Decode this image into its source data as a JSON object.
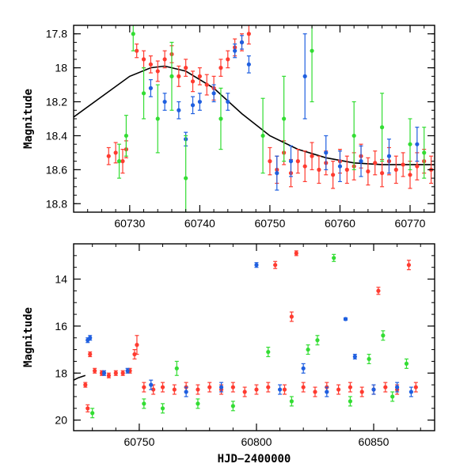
{
  "chart_data": [
    {
      "type": "scatter",
      "ylabel": "Magnitude",
      "xlabel": "",
      "xlim": [
        60722,
        60773.5
      ],
      "ylim": [
        18.85,
        17.75
      ],
      "y_inverted": true,
      "x_ticks": [
        60730,
        60740,
        60750,
        60760,
        60770
      ],
      "y_ticks": [
        17.8,
        18,
        18.2,
        18.4,
        18.6,
        18.8
      ],
      "x_tick_labels": [
        "60730",
        "60740",
        "60750",
        "60760",
        "60770"
      ],
      "y_tick_labels": [
        "17.8",
        "18",
        "18.2",
        "18.4",
        "18.6",
        "18.8"
      ],
      "model_curve": {
        "color": "#000000",
        "x": [
          60722,
          60726,
          60730,
          60733,
          60735,
          60738,
          60742,
          60746,
          60750,
          60754,
          60758,
          60762,
          60766,
          60770,
          60773.5
        ],
        "y": [
          18.29,
          18.17,
          18.05,
          18.0,
          17.99,
          18.02,
          18.12,
          18.27,
          18.4,
          18.48,
          18.53,
          18.56,
          18.57,
          18.57,
          18.57
        ]
      },
      "series": [
        {
          "color": "#ff3b30",
          "points": [
            {
              "x": 60727,
              "y": 18.52,
              "e": 0.05
            },
            {
              "x": 60728,
              "y": 18.5,
              "e": 0.06
            },
            {
              "x": 60729,
              "y": 18.55,
              "e": 0.07
            },
            {
              "x": 60729.5,
              "y": 18.48,
              "e": 0.05
            },
            {
              "x": 60731,
              "y": 17.9,
              "e": 0.04
            },
            {
              "x": 60732,
              "y": 17.95,
              "e": 0.05
            },
            {
              "x": 60733,
              "y": 17.98,
              "e": 0.05
            },
            {
              "x": 60734,
              "y": 18.02,
              "e": 0.06
            },
            {
              "x": 60735,
              "y": 17.95,
              "e": 0.05
            },
            {
              "x": 60736,
              "y": 17.92,
              "e": 0.05
            },
            {
              "x": 60737,
              "y": 18.05,
              "e": 0.06
            },
            {
              "x": 60738,
              "y": 18.0,
              "e": 0.05
            },
            {
              "x": 60739,
              "y": 18.08,
              "e": 0.06
            },
            {
              "x": 60740,
              "y": 18.05,
              "e": 0.05
            },
            {
              "x": 60741,
              "y": 18.1,
              "e": 0.06
            },
            {
              "x": 60742,
              "y": 18.12,
              "e": 0.07
            },
            {
              "x": 60743,
              "y": 18.0,
              "e": 0.05
            },
            {
              "x": 60744,
              "y": 17.95,
              "e": 0.05
            },
            {
              "x": 60745,
              "y": 17.88,
              "e": 0.05
            },
            {
              "x": 60746,
              "y": 17.85,
              "e": 0.05
            },
            {
              "x": 60747,
              "y": 17.8,
              "e": 0.06
            },
            {
              "x": 60750,
              "y": 18.55,
              "e": 0.08
            },
            {
              "x": 60751,
              "y": 18.6,
              "e": 0.08
            },
            {
              "x": 60752,
              "y": 18.5,
              "e": 0.07
            },
            {
              "x": 60753,
              "y": 18.62,
              "e": 0.08
            },
            {
              "x": 60754,
              "y": 18.55,
              "e": 0.07
            },
            {
              "x": 60755,
              "y": 18.58,
              "e": 0.09
            },
            {
              "x": 60756,
              "y": 18.52,
              "e": 0.08
            },
            {
              "x": 60757,
              "y": 18.6,
              "e": 0.08
            },
            {
              "x": 60758,
              "y": 18.56,
              "e": 0.07
            },
            {
              "x": 60759,
              "y": 18.63,
              "e": 0.08
            },
            {
              "x": 60760,
              "y": 18.55,
              "e": 0.07
            },
            {
              "x": 60761,
              "y": 18.6,
              "e": 0.08
            },
            {
              "x": 60762,
              "y": 18.58,
              "e": 0.08
            },
            {
              "x": 60763,
              "y": 18.52,
              "e": 0.07
            },
            {
              "x": 60764,
              "y": 18.61,
              "e": 0.08
            },
            {
              "x": 60765,
              "y": 18.56,
              "e": 0.07
            },
            {
              "x": 60766,
              "y": 18.62,
              "e": 0.08
            },
            {
              "x": 60767,
              "y": 18.55,
              "e": 0.08
            },
            {
              "x": 60768,
              "y": 18.6,
              "e": 0.08
            },
            {
              "x": 60769,
              "y": 18.57,
              "e": 0.07
            },
            {
              "x": 60770,
              "y": 18.63,
              "e": 0.08
            },
            {
              "x": 60771,
              "y": 18.58,
              "e": 0.08
            },
            {
              "x": 60772,
              "y": 18.55,
              "e": 0.07
            },
            {
              "x": 60773,
              "y": 18.6,
              "e": 0.08
            }
          ]
        },
        {
          "color": "#1f5fe0",
          "points": [
            {
              "x": 60733,
              "y": 18.12,
              "e": 0.05
            },
            {
              "x": 60735,
              "y": 18.2,
              "e": 0.05
            },
            {
              "x": 60737,
              "y": 18.25,
              "e": 0.05
            },
            {
              "x": 60738,
              "y": 18.42,
              "e": 0.04
            },
            {
              "x": 60739,
              "y": 18.22,
              "e": 0.05
            },
            {
              "x": 60740,
              "y": 18.2,
              "e": 0.05
            },
            {
              "x": 60742,
              "y": 18.15,
              "e": 0.05
            },
            {
              "x": 60744,
              "y": 18.2,
              "e": 0.05
            },
            {
              "x": 60745,
              "y": 17.9,
              "e": 0.04
            },
            {
              "x": 60746,
              "y": 17.85,
              "e": 0.04
            },
            {
              "x": 60747,
              "y": 17.98,
              "e": 0.05
            },
            {
              "x": 60751,
              "y": 18.62,
              "e": 0.1
            },
            {
              "x": 60753,
              "y": 18.55,
              "e": 0.09
            },
            {
              "x": 60755,
              "y": 18.05,
              "e": 0.25
            },
            {
              "x": 60758,
              "y": 18.5,
              "e": 0.1
            },
            {
              "x": 60760,
              "y": 18.58,
              "e": 0.09
            },
            {
              "x": 60763,
              "y": 18.55,
              "e": 0.09
            },
            {
              "x": 60767,
              "y": 18.52,
              "e": 0.1
            },
            {
              "x": 60771,
              "y": 18.45,
              "e": 0.1
            }
          ]
        },
        {
          "color": "#33dd33",
          "points": [
            {
              "x": 60728.5,
              "y": 18.55,
              "e": 0.1
            },
            {
              "x": 60729.5,
              "y": 18.4,
              "e": 0.12
            },
            {
              "x": 60730.5,
              "y": 17.8,
              "e": 0.1
            },
            {
              "x": 60732,
              "y": 18.15,
              "e": 0.15
            },
            {
              "x": 60734,
              "y": 18.3,
              "e": 0.2
            },
            {
              "x": 60736,
              "y": 18.05,
              "e": 0.2
            },
            {
              "x": 60738,
              "y": 18.65,
              "e": 0.25
            },
            {
              "x": 60743,
              "y": 18.3,
              "e": 0.18
            },
            {
              "x": 60749,
              "y": 18.4,
              "e": 0.22
            },
            {
              "x": 60752,
              "y": 18.3,
              "e": 0.25
            },
            {
              "x": 60756,
              "y": 17.9,
              "e": 0.3
            },
            {
              "x": 60762,
              "y": 18.4,
              "e": 0.2
            },
            {
              "x": 60766,
              "y": 18.35,
              "e": 0.2
            },
            {
              "x": 60770,
              "y": 18.45,
              "e": 0.15
            },
            {
              "x": 60772,
              "y": 18.5,
              "e": 0.15
            }
          ]
        }
      ]
    },
    {
      "type": "scatter",
      "ylabel": "Magnitude",
      "xlabel": "HJD−2400000",
      "xlim": [
        60722,
        60876
      ],
      "ylim": [
        20.45,
        12.5
      ],
      "y_inverted": true,
      "x_ticks": [
        60750,
        60800,
        60850
      ],
      "y_ticks": [
        14,
        16,
        18,
        20
      ],
      "x_tick_labels": [
        "60750",
        "60800",
        "60850"
      ],
      "y_tick_labels": [
        "14",
        "16",
        "18",
        "20"
      ],
      "model_curve": {
        "color": "#000000",
        "x": [
          60722,
          60724,
          60727
        ],
        "y": [
          18.3,
          18.2,
          18.1
        ]
      },
      "series": [
        {
          "color": "#ff3b30",
          "points": [
            {
              "x": 60727,
              "y": 18.5,
              "e": 0.1
            },
            {
              "x": 60728,
              "y": 19.5,
              "e": 0.15
            },
            {
              "x": 60729,
              "y": 17.2,
              "e": 0.1
            },
            {
              "x": 60731,
              "y": 17.9,
              "e": 0.1
            },
            {
              "x": 60734,
              "y": 18.0,
              "e": 0.1
            },
            {
              "x": 60737,
              "y": 18.1,
              "e": 0.1
            },
            {
              "x": 60740,
              "y": 18.0,
              "e": 0.1
            },
            {
              "x": 60743,
              "y": 18.0,
              "e": 0.1
            },
            {
              "x": 60746,
              "y": 17.9,
              "e": 0.1
            },
            {
              "x": 60748,
              "y": 17.2,
              "e": 0.2
            },
            {
              "x": 60749,
              "y": 16.8,
              "e": 0.4
            },
            {
              "x": 60752,
              "y": 18.6,
              "e": 0.2
            },
            {
              "x": 60756,
              "y": 18.7,
              "e": 0.2
            },
            {
              "x": 60760,
              "y": 18.6,
              "e": 0.2
            },
            {
              "x": 60765,
              "y": 18.7,
              "e": 0.2
            },
            {
              "x": 60770,
              "y": 18.6,
              "e": 0.2
            },
            {
              "x": 60775,
              "y": 18.7,
              "e": 0.2
            },
            {
              "x": 60780,
              "y": 18.6,
              "e": 0.2
            },
            {
              "x": 60785,
              "y": 18.7,
              "e": 0.2
            },
            {
              "x": 60790,
              "y": 18.6,
              "e": 0.2
            },
            {
              "x": 60795,
              "y": 18.8,
              "e": 0.2
            },
            {
              "x": 60800,
              "y": 18.7,
              "e": 0.2
            },
            {
              "x": 60805,
              "y": 18.6,
              "e": 0.2
            },
            {
              "x": 60808,
              "y": 13.4,
              "e": 0.15
            },
            {
              "x": 60812,
              "y": 18.7,
              "e": 0.2
            },
            {
              "x": 60815,
              "y": 15.6,
              "e": 0.2
            },
            {
              "x": 60817,
              "y": 12.9,
              "e": 0.1
            },
            {
              "x": 60820,
              "y": 18.6,
              "e": 0.2
            },
            {
              "x": 60825,
              "y": 18.8,
              "e": 0.2
            },
            {
              "x": 60830,
              "y": 18.6,
              "e": 0.2
            },
            {
              "x": 60835,
              "y": 18.7,
              "e": 0.2
            },
            {
              "x": 60840,
              "y": 18.6,
              "e": 0.2
            },
            {
              "x": 60845,
              "y": 18.8,
              "e": 0.2
            },
            {
              "x": 60850,
              "y": 18.7,
              "e": 0.2
            },
            {
              "x": 60852,
              "y": 14.5,
              "e": 0.15
            },
            {
              "x": 60855,
              "y": 18.6,
              "e": 0.2
            },
            {
              "x": 60860,
              "y": 18.7,
              "e": 0.2
            },
            {
              "x": 60865,
              "y": 13.4,
              "e": 0.2
            },
            {
              "x": 60868,
              "y": 18.6,
              "e": 0.2
            }
          ]
        },
        {
          "color": "#1f5fe0",
          "points": [
            {
              "x": 60728,
              "y": 16.6,
              "e": 0.1
            },
            {
              "x": 60729,
              "y": 16.5,
              "e": 0.1
            },
            {
              "x": 60735,
              "y": 18.0,
              "e": 0.1
            },
            {
              "x": 60745,
              "y": 17.9,
              "e": 0.1
            },
            {
              "x": 60755,
              "y": 18.5,
              "e": 0.2
            },
            {
              "x": 60770,
              "y": 18.8,
              "e": 0.2
            },
            {
              "x": 60785,
              "y": 18.6,
              "e": 0.2
            },
            {
              "x": 60800,
              "y": 13.4,
              "e": 0.1
            },
            {
              "x": 60810,
              "y": 18.7,
              "e": 0.2
            },
            {
              "x": 60820,
              "y": 17.8,
              "e": 0.2
            },
            {
              "x": 60830,
              "y": 18.8,
              "e": 0.2
            },
            {
              "x": 60838,
              "y": 15.7,
              "e": 0.05
            },
            {
              "x": 60842,
              "y": 17.3,
              "e": 0.1
            },
            {
              "x": 60850,
              "y": 18.7,
              "e": 0.2
            },
            {
              "x": 60860,
              "y": 18.6,
              "e": 0.2
            },
            {
              "x": 60866,
              "y": 18.8,
              "e": 0.2
            }
          ]
        },
        {
          "color": "#33dd33",
          "points": [
            {
              "x": 60730,
              "y": 19.7,
              "e": 0.2
            },
            {
              "x": 60752,
              "y": 19.3,
              "e": 0.2
            },
            {
              "x": 60760,
              "y": 19.5,
              "e": 0.2
            },
            {
              "x": 60766,
              "y": 17.8,
              "e": 0.3
            },
            {
              "x": 60775,
              "y": 19.3,
              "e": 0.2
            },
            {
              "x": 60790,
              "y": 19.4,
              "e": 0.2
            },
            {
              "x": 60805,
              "y": 17.1,
              "e": 0.2
            },
            {
              "x": 60815,
              "y": 19.2,
              "e": 0.2
            },
            {
              "x": 60822,
              "y": 17.0,
              "e": 0.2
            },
            {
              "x": 60826,
              "y": 16.6,
              "e": 0.2
            },
            {
              "x": 60833,
              "y": 13.1,
              "e": 0.15
            },
            {
              "x": 60840,
              "y": 19.2,
              "e": 0.2
            },
            {
              "x": 60848,
              "y": 17.4,
              "e": 0.2
            },
            {
              "x": 60854,
              "y": 16.4,
              "e": 0.2
            },
            {
              "x": 60858,
              "y": 19.0,
              "e": 0.2
            },
            {
              "x": 60864,
              "y": 17.6,
              "e": 0.2
            }
          ]
        }
      ]
    }
  ]
}
